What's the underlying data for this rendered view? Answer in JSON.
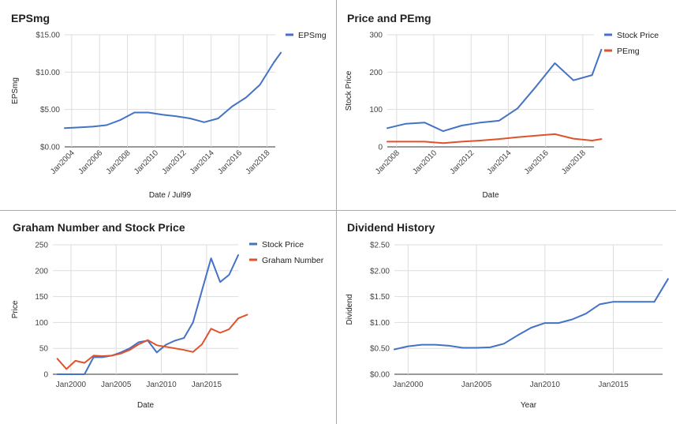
{
  "chart_data": [
    {
      "type": "line",
      "title": "EPSmg",
      "xlabel": "Date / Jul99",
      "ylabel": "EPSmg",
      "xlim": [
        2003.5,
        2018.6
      ],
      "ylim": [
        0,
        15
      ],
      "y_ticks": [
        {
          "v": 0,
          "label": "$0.00"
        },
        {
          "v": 5,
          "label": "$5.00"
        },
        {
          "v": 10,
          "label": "$10.00"
        },
        {
          "v": 15,
          "label": "$15.00"
        }
      ],
      "x_ticks": [
        {
          "v": 2004,
          "label": "Jan2004"
        },
        {
          "v": 2006,
          "label": "Jan2006"
        },
        {
          "v": 2008,
          "label": "Jan2008"
        },
        {
          "v": 2010,
          "label": "Jan2010"
        },
        {
          "v": 2012,
          "label": "Jan2012"
        },
        {
          "v": 2014,
          "label": "Jan2014"
        },
        {
          "v": 2016,
          "label": "Jan2016"
        },
        {
          "v": 2018,
          "label": "Jan2018"
        }
      ],
      "x_tick_rotation": -45,
      "vgrid": true,
      "legend_position": "right",
      "series": [
        {
          "name": "EPSmg",
          "color": "#4472c4",
          "x": [
            2003.5,
            2004.5,
            2005.5,
            2006.5,
            2007.5,
            2008.5,
            2009.5,
            2010.5,
            2011.5,
            2012.5,
            2013.5,
            2014.5,
            2015.5,
            2016.5,
            2017.5,
            2018.5
          ],
          "values": [
            2.5,
            2.6,
            2.7,
            2.9,
            3.6,
            4.6,
            4.6,
            4.3,
            4.1,
            3.8,
            3.3,
            3.8,
            5.4,
            6.6,
            8.3,
            11.3
          ]
        },
        {
          "name": "",
          "color": "#4472c4",
          "x": [
            2018.5,
            2019.0
          ],
          "values": [
            11.3,
            12.6
          ]
        }
      ]
    },
    {
      "type": "line",
      "title": "Price and PEmg",
      "xlabel": "Date",
      "ylabel": "Stock Price",
      "xlim": [
        2007.5,
        2018.6
      ],
      "ylim": [
        0,
        300
      ],
      "y_ticks": [
        {
          "v": 0,
          "label": "0"
        },
        {
          "v": 100,
          "label": "100"
        },
        {
          "v": 200,
          "label": "200"
        },
        {
          "v": 300,
          "label": "300"
        }
      ],
      "x_ticks": [
        {
          "v": 2008,
          "label": "Jan2008"
        },
        {
          "v": 2010,
          "label": "Jan2010"
        },
        {
          "v": 2012,
          "label": "Jan2012"
        },
        {
          "v": 2014,
          "label": "Jan2014"
        },
        {
          "v": 2016,
          "label": "Jan2016"
        },
        {
          "v": 2018,
          "label": "Jan2018"
        }
      ],
      "x_tick_rotation": -45,
      "vgrid": true,
      "legend_position": "right",
      "series": [
        {
          "name": "Stock Price",
          "color": "#4472c4",
          "x": [
            2007.5,
            2008.5,
            2009.5,
            2010.5,
            2011.5,
            2012.5,
            2013.5,
            2014.5,
            2015.5,
            2016.5,
            2017.5,
            2018.5
          ],
          "values": [
            50,
            62,
            65,
            42,
            57,
            65,
            70,
            103,
            162,
            224,
            178,
            192
          ]
        },
        {
          "name": "PEmg",
          "color": "#e0522c",
          "x": [
            2007.5,
            2008.5,
            2009.5,
            2010.5,
            2011.5,
            2012.5,
            2013.5,
            2014.5,
            2015.5,
            2016.5,
            2017.5,
            2018.5
          ],
          "values": [
            14,
            14,
            14,
            10,
            14,
            17,
            21,
            26,
            30,
            34,
            22,
            17
          ]
        },
        {
          "name": "",
          "color": "#4472c4",
          "x": [
            2018.5,
            2019.0
          ],
          "values": [
            192,
            260
          ]
        },
        {
          "name": "",
          "color": "#e0522c",
          "x": [
            2018.5,
            2019.0
          ],
          "values": [
            17,
            21
          ]
        }
      ]
    },
    {
      "type": "line",
      "title": "Graham Number and Stock Price",
      "xlabel": "Date",
      "ylabel": "Price",
      "xlim": [
        1998.0,
        2018.5
      ],
      "ylim": [
        0,
        250
      ],
      "y_ticks": [
        {
          "v": 0,
          "label": "0"
        },
        {
          "v": 50,
          "label": "50"
        },
        {
          "v": 100,
          "label": "100"
        },
        {
          "v": 150,
          "label": "150"
        },
        {
          "v": 200,
          "label": "200"
        },
        {
          "v": 250,
          "label": "250"
        }
      ],
      "x_ticks": [
        {
          "v": 2000,
          "label": "Jan2000"
        },
        {
          "v": 2005,
          "label": "Jan2005"
        },
        {
          "v": 2010,
          "label": "Jan2010"
        },
        {
          "v": 2015,
          "label": "Jan2015"
        }
      ],
      "x_tick_rotation": 0,
      "vgrid": true,
      "legend_position": "right",
      "series": [
        {
          "name": "Stock Price",
          "color": "#4472c4",
          "x": [
            1998.5,
            1999.5,
            2000.5,
            2001.5,
            2002.5,
            2003.5,
            2004.5,
            2005.5,
            2006.5,
            2007.5,
            2008.5,
            2009.5,
            2010.5,
            2011.5,
            2012.5,
            2013.5,
            2014.5,
            2015.5,
            2016.5,
            2017.5,
            2018.5
          ],
          "values": [
            0,
            0,
            0,
            0,
            33,
            33,
            36,
            42,
            50,
            62,
            65,
            42,
            57,
            65,
            70,
            100,
            162,
            224,
            178,
            192,
            230
          ]
        },
        {
          "name": "Graham Number",
          "color": "#e0522c",
          "x": [
            1998.5,
            1999.5,
            2000.5,
            2001.5,
            2002.5,
            2003.5,
            2004.5,
            2005.5,
            2006.5,
            2007.5,
            2008.5,
            2009.5,
            2010.5,
            2011.5,
            2012.5,
            2013.5,
            2014.5,
            2015.5,
            2016.5,
            2017.5,
            2018.5
          ],
          "values": [
            30,
            10,
            26,
            22,
            36,
            35,
            36,
            40,
            47,
            58,
            66,
            56,
            53,
            50,
            47,
            43,
            58,
            88,
            80,
            87,
            108
          ]
        },
        {
          "name": "",
          "color": "#e0522c",
          "x": [
            2018.5,
            2019.5
          ],
          "values": [
            108,
            115
          ]
        }
      ]
    },
    {
      "type": "line",
      "title": "Dividend History",
      "xlabel": "Year",
      "ylabel": "Dividend",
      "xlim": [
        1999.0,
        2018.6
      ],
      "ylim": [
        0,
        2.5
      ],
      "y_ticks": [
        {
          "v": 0,
          "label": "$0.00"
        },
        {
          "v": 0.5,
          "label": "$0.50"
        },
        {
          "v": 1,
          "label": "$1.00"
        },
        {
          "v": 1.5,
          "label": "$1.50"
        },
        {
          "v": 2,
          "label": "$2.00"
        },
        {
          "v": 2.5,
          "label": "$2.50"
        }
      ],
      "x_ticks": [
        {
          "v": 2000,
          "label": "Jan2000"
        },
        {
          "v": 2005,
          "label": "Jan2005"
        },
        {
          "v": 2010,
          "label": "Jan2010"
        },
        {
          "v": 2015,
          "label": "Jan2015"
        }
      ],
      "x_tick_rotation": 0,
      "vgrid": true,
      "legend_position": "none",
      "series": [
        {
          "name": "",
          "color": "#4472c4",
          "x": [
            1999.0,
            2000.0,
            2001.0,
            2002.0,
            2003.0,
            2004.0,
            2005.0,
            2006.0,
            2007.0,
            2008.0,
            2009.0,
            2010.0,
            2011.0,
            2012.0,
            2013.0,
            2014.0,
            2015.0,
            2016.0,
            2017.0,
            2018.0,
            2019.0
          ],
          "values": [
            0.48,
            0.54,
            0.57,
            0.57,
            0.55,
            0.51,
            0.51,
            0.52,
            0.59,
            0.75,
            0.9,
            0.99,
            0.99,
            1.06,
            1.17,
            1.35,
            1.4,
            1.4,
            1.4,
            1.4,
            1.84
          ]
        }
      ]
    }
  ]
}
